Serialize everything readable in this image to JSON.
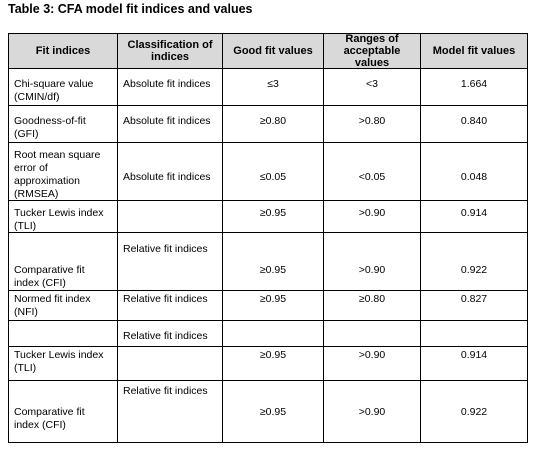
{
  "header": {
    "title": "Table 3: CFA model fit indices and values"
  },
  "table": {
    "columns": [
      "Fit indices",
      "Classification of indices",
      "Good fit values",
      "Ranges of acceptable values",
      "Model fit values"
    ],
    "rows": [
      [
        "Chi-square value (CMIN/df)",
        "Absolute fit indices",
        "≤3",
        "<3",
        "1.664"
      ],
      [
        "Goodness-of-fit (GFI)",
        "Absolute fit indices",
        "≥0.80",
        ">0.80",
        "0.840"
      ],
      [
        "Root mean square error of approximation (RMSEA)",
        "Absolute fit indices",
        "≤0.05",
        "<0.05",
        "0.048"
      ],
      [
        "Tucker Lewis index (TLI)",
        null,
        "≥0.95",
        ">0.90",
        "0.914"
      ],
      [
        "Comparative fit index (CFI)",
        "Relative fit indices",
        "≥0.95",
        ">0.90",
        "0.922"
      ],
      [
        "Normed fit index (NFI)",
        "Relative fit indices",
        "≥0.95",
        "≥0.80",
        "0.827"
      ],
      [
        null,
        "Relative fit indices",
        null,
        null,
        null
      ],
      [
        "Tucker Lewis index (TLI)",
        null,
        "≥0.95",
        ">0.90",
        "0.914"
      ],
      [
        "Comparative fit index (CFI)",
        "Relative fit indices",
        "≥0.95",
        ">0.90",
        "0.922"
      ]
    ]
  }
}
